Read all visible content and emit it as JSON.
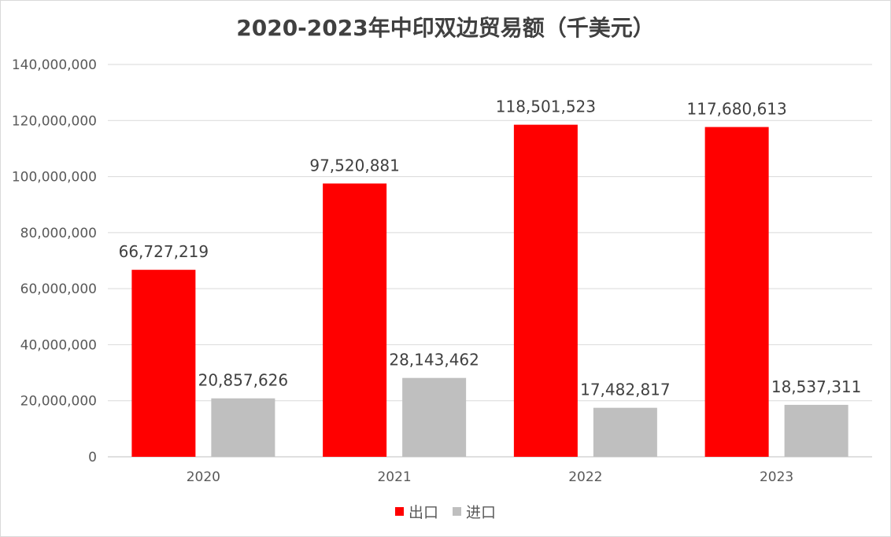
{
  "chart_data": {
    "type": "bar",
    "title": "2020-2023年中印双边贸易额（千美元）",
    "categories": [
      "2020",
      "2021",
      "2022",
      "2023"
    ],
    "series": [
      {
        "name": "出口",
        "color": "#ff0000",
        "values": [
          66727219,
          97520881,
          118501523,
          117680613
        ],
        "labels": [
          "66,727,219",
          "97,520,881",
          "118,501,523",
          "117,680,613"
        ]
      },
      {
        "name": "进口",
        "color": "#bfbfbf",
        "values": [
          20857626,
          28143462,
          17482817,
          18537311
        ],
        "labels": [
          "20,857,626",
          "28,143,462",
          "17,482,817",
          "18,537,311"
        ]
      }
    ],
    "yticks": [
      "0",
      "20,000,000",
      "40,000,000",
      "60,000,000",
      "80,000,000",
      "100,000,000",
      "120,000,000",
      "140,000,000"
    ],
    "ylim": [
      0,
      140000000
    ],
    "grid": true,
    "legend_position": "bottom"
  }
}
